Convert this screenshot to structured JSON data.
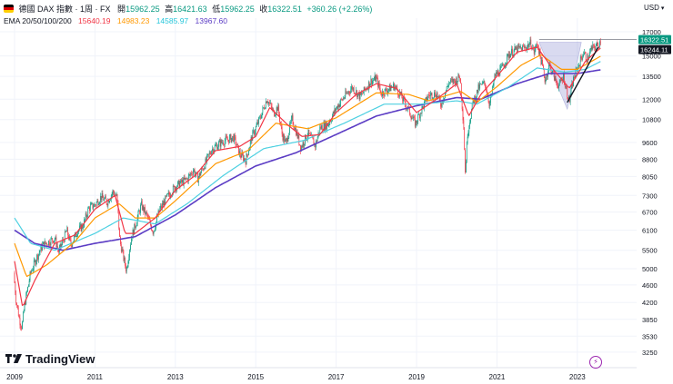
{
  "header": {
    "symbol": "德國 DAX 指數 · 1周 · FX",
    "open_label": "開",
    "open": "15962.25",
    "high_label": "高",
    "high": "16421.63",
    "low_label": "低",
    "low": "15962.25",
    "close_label": "收",
    "close": "16322.51",
    "change": "+360.26 (+2.26%)",
    "ema_label": "EMA 20/50/100/200",
    "ema20": "15640.19",
    "ema50": "14983.23",
    "ema100": "14585.97",
    "ema200": "13967.60"
  },
  "currency": "USD",
  "logo_text": "TradingView",
  "colors": {
    "up": "#089981",
    "down": "#f23645",
    "ema20": "#f23645",
    "ema50": "#ff9800",
    "ema100": "#4dd0e1",
    "ema200": "#5b3cc4",
    "flag_black": "#000000",
    "flag_red": "#dd0000",
    "flag_gold": "#ffce00"
  },
  "chart_data": {
    "type": "candlestick",
    "title": "德國 DAX 指數 · 1周 · FX",
    "scale": "log",
    "ylim": [
      3000,
      17400
    ],
    "xlim": [
      2009.0,
      2024.75
    ],
    "y_ticks": [
      17000,
      15000,
      13500,
      12000,
      10800,
      9600,
      8800,
      8050,
      7300,
      6700,
      6100,
      5500,
      5000,
      4600,
      4200,
      3850,
      3530,
      3250
    ],
    "x_ticks": [
      "2009",
      "2011",
      "2013",
      "2015",
      "2017",
      "2019",
      "2021",
      "2023"
    ],
    "x_tick_years": [
      2009,
      2011,
      2013,
      2015,
      2017,
      2019,
      2021,
      2023
    ],
    "price_labels": [
      {
        "value": 16322.51,
        "text": "16322.51",
        "color": "#089981"
      },
      {
        "value": 16244.11,
        "text": "16244.11",
        "color": "#131722"
      }
    ],
    "anchors": [
      [
        2009.0,
        4900,
        4400
      ],
      [
        2009.04,
        4400,
        4100
      ],
      [
        2009.12,
        4000,
        3700
      ],
      [
        2009.18,
        3800,
        3600
      ],
      [
        2009.25,
        4200,
        4100
      ],
      [
        2009.4,
        5000,
        4800
      ],
      [
        2009.55,
        5400,
        5200
      ],
      [
        2009.7,
        5700,
        5600
      ],
      [
        2009.85,
        5800,
        5700
      ],
      [
        2010.0,
        5900,
        5800
      ],
      [
        2010.1,
        5500,
        5400
      ],
      [
        2010.3,
        6200,
        6000
      ],
      [
        2010.4,
        5700,
        5600
      ],
      [
        2010.55,
        6100,
        6000
      ],
      [
        2010.7,
        6300,
        6200
      ],
      [
        2010.85,
        6900,
        6800
      ],
      [
        2011.0,
        7000,
        6900
      ],
      [
        2011.15,
        7300,
        7200
      ],
      [
        2011.3,
        7100,
        7000
      ],
      [
        2011.45,
        7500,
        7400
      ],
      [
        2011.55,
        7250,
        7200
      ],
      [
        2011.62,
        5900,
        5600
      ],
      [
        2011.72,
        5300,
        5200
      ],
      [
        2011.78,
        5000,
        4900
      ],
      [
        2011.9,
        5900,
        5800
      ],
      [
        2012.0,
        6300,
        6200
      ],
      [
        2012.15,
        7000,
        6900
      ],
      [
        2012.3,
        6600,
        6500
      ],
      [
        2012.45,
        6100,
        6000
      ],
      [
        2012.6,
        6800,
        6700
      ],
      [
        2012.8,
        7300,
        7200
      ],
      [
        2013.0,
        7700,
        7600
      ],
      [
        2013.3,
        8000,
        7900
      ],
      [
        2013.45,
        8400,
        8300
      ],
      [
        2013.55,
        8000,
        7900
      ],
      [
        2013.7,
        8500,
        8400
      ],
      [
        2013.9,
        9300,
        9200
      ],
      [
        2014.1,
        9600,
        9500
      ],
      [
        2014.3,
        9800,
        9700
      ],
      [
        2014.45,
        9900,
        9800
      ],
      [
        2014.6,
        9100,
        9000
      ],
      [
        2014.75,
        8800,
        8700
      ],
      [
        2014.9,
        9900,
        9800
      ],
      [
        2015.1,
        10900,
        10800
      ],
      [
        2015.28,
        12100,
        12000
      ],
      [
        2015.45,
        11200,
        11100
      ],
      [
        2015.55,
        11600,
        11500
      ],
      [
        2015.65,
        10100,
        10000
      ],
      [
        2015.75,
        9600,
        9500
      ],
      [
        2015.9,
        10900,
        10800
      ],
      [
        2016.05,
        9900,
        9800
      ],
      [
        2016.12,
        9400,
        9300
      ],
      [
        2016.3,
        10100,
        10000
      ],
      [
        2016.48,
        9500,
        9400
      ],
      [
        2016.6,
        10400,
        10300
      ],
      [
        2016.8,
        10600,
        10500
      ],
      [
        2017.0,
        11500,
        11400
      ],
      [
        2017.2,
        12200,
        12100
      ],
      [
        2017.4,
        12800,
        12700
      ],
      [
        2017.6,
        12200,
        12100
      ],
      [
        2017.85,
        13200,
        13100
      ],
      [
        2018.0,
        13400,
        13300
      ],
      [
        2018.12,
        12400,
        12300
      ],
      [
        2018.3,
        12700,
        12600
      ],
      [
        2018.45,
        12900,
        12800
      ],
      [
        2018.6,
        12300,
        12200
      ],
      [
        2018.8,
        11400,
        11300
      ],
      [
        2018.97,
        10600,
        10500
      ],
      [
        2019.1,
        11300,
        11200
      ],
      [
        2019.3,
        12300,
        12200
      ],
      [
        2019.5,
        12400,
        12300
      ],
      [
        2019.6,
        11700,
        11600
      ],
      [
        2019.8,
        13100,
        13000
      ],
      [
        2020.0,
        13300,
        13200
      ],
      [
        2020.08,
        13600,
        13500
      ],
      [
        2020.18,
        10300,
        10100
      ],
      [
        2020.21,
        8300,
        8100
      ],
      [
        2020.27,
        10200,
        10000
      ],
      [
        2020.4,
        11800,
        11700
      ],
      [
        2020.55,
        12800,
        12700
      ],
      [
        2020.7,
        13100,
        13000
      ],
      [
        2020.82,
        11700,
        11600
      ],
      [
        2020.95,
        13600,
        13500
      ],
      [
        2021.1,
        14000,
        13900
      ],
      [
        2021.3,
        15200,
        15100
      ],
      [
        2021.5,
        15600,
        15500
      ],
      [
        2021.7,
        15700,
        15600
      ],
      [
        2021.85,
        16100,
        16000
      ],
      [
        2021.92,
        15300,
        15200
      ],
      [
        2022.0,
        16100,
        16000
      ],
      [
        2022.15,
        14000,
        13900
      ],
      [
        2022.2,
        13400,
        13000
      ],
      [
        2022.3,
        14400,
        14300
      ],
      [
        2022.45,
        13300,
        13200
      ],
      [
        2022.55,
        12900,
        12800
      ],
      [
        2022.65,
        13600,
        13500
      ],
      [
        2022.75,
        12400,
        12300
      ],
      [
        2022.8,
        11900,
        11800
      ],
      [
        2022.9,
        13300,
        13200
      ],
      [
        2023.0,
        14100,
        14000
      ],
      [
        2023.15,
        15300,
        15200
      ],
      [
        2023.25,
        14800,
        14700
      ],
      [
        2023.35,
        15600,
        15500
      ],
      [
        2023.5,
        15900,
        15800
      ],
      [
        2023.58,
        16300,
        16200
      ]
    ],
    "ema_anchors": {
      "ema20": [
        [
          2009.0,
          5200
        ],
        [
          2009.2,
          4100
        ],
        [
          2009.5,
          4700
        ],
        [
          2010.0,
          5700
        ],
        [
          2010.5,
          5950
        ],
        [
          2011.0,
          6800
        ],
        [
          2011.5,
          7300
        ],
        [
          2011.75,
          6000
        ],
        [
          2012.0,
          6000
        ],
        [
          2012.5,
          6500
        ],
        [
          2013.0,
          7500
        ],
        [
          2013.5,
          8100
        ],
        [
          2014.0,
          9200
        ],
        [
          2014.6,
          9400
        ],
        [
          2015.0,
          9900
        ],
        [
          2015.35,
          11500
        ],
        [
          2015.8,
          10500
        ],
        [
          2016.15,
          9900
        ],
        [
          2016.6,
          10000
        ],
        [
          2017.0,
          11200
        ],
        [
          2017.5,
          12300
        ],
        [
          2018.0,
          13000
        ],
        [
          2018.5,
          12700
        ],
        [
          2019.0,
          11200
        ],
        [
          2019.5,
          12000
        ],
        [
          2020.0,
          13000
        ],
        [
          2020.3,
          11000
        ],
        [
          2020.6,
          12300
        ],
        [
          2021.0,
          13500
        ],
        [
          2021.5,
          15300
        ],
        [
          2022.0,
          15700
        ],
        [
          2022.4,
          14000
        ],
        [
          2022.8,
          12700
        ],
        [
          2023.2,
          14600
        ],
        [
          2023.58,
          15640
        ]
      ],
      "ema50": [
        [
          2009.0,
          5700
        ],
        [
          2009.3,
          4800
        ],
        [
          2009.8,
          5100
        ],
        [
          2010.5,
          5750
        ],
        [
          2011.0,
          6500
        ],
        [
          2011.6,
          7000
        ],
        [
          2012.0,
          6500
        ],
        [
          2012.5,
          6500
        ],
        [
          2013.0,
          7100
        ],
        [
          2014.0,
          8600
        ],
        [
          2014.8,
          9200
        ],
        [
          2015.5,
          10600
        ],
        [
          2016.3,
          10300
        ],
        [
          2017.0,
          10900
        ],
        [
          2018.0,
          12400
        ],
        [
          2018.8,
          12300
        ],
        [
          2019.3,
          11900
        ],
        [
          2020.1,
          12500
        ],
        [
          2020.5,
          11800
        ],
        [
          2021.0,
          12800
        ],
        [
          2021.6,
          14300
        ],
        [
          2022.1,
          15100
        ],
        [
          2022.6,
          14000
        ],
        [
          2023.0,
          14000
        ],
        [
          2023.58,
          14983
        ]
      ],
      "ema100": [
        [
          2009.0,
          6500
        ],
        [
          2009.4,
          5700
        ],
        [
          2010.0,
          5500
        ],
        [
          2011.0,
          6000
        ],
        [
          2011.7,
          6500
        ],
        [
          2012.5,
          6300
        ],
        [
          2013.3,
          7000
        ],
        [
          2014.2,
          8100
        ],
        [
          2015.2,
          9300
        ],
        [
          2016.2,
          9700
        ],
        [
          2017.2,
          10600
        ],
        [
          2018.2,
          11700
        ],
        [
          2019.1,
          11700
        ],
        [
          2020.0,
          11900
        ],
        [
          2020.5,
          11700
        ],
        [
          2021.3,
          12800
        ],
        [
          2022.0,
          14100
        ],
        [
          2022.7,
          13800
        ],
        [
          2023.2,
          14000
        ],
        [
          2023.58,
          14586
        ]
      ],
      "ema200": [
        [
          2009.0,
          6100
        ],
        [
          2009.5,
          5700
        ],
        [
          2010.2,
          5500
        ],
        [
          2011.0,
          5700
        ],
        [
          2012.0,
          5900
        ],
        [
          2013.0,
          6600
        ],
        [
          2014.0,
          7600
        ],
        [
          2015.0,
          8500
        ],
        [
          2016.0,
          9100
        ],
        [
          2017.0,
          10000
        ],
        [
          2018.0,
          11000
        ],
        [
          2019.0,
          11600
        ],
        [
          2020.0,
          12100
        ],
        [
          2020.6,
          12000
        ],
        [
          2021.5,
          13000
        ],
        [
          2022.3,
          13700
        ],
        [
          2023.0,
          13700
        ],
        [
          2023.58,
          13968
        ]
      ]
    },
    "drawings": {
      "triangle": [
        [
          2022.05,
          16100
        ],
        [
          2022.75,
          11400
        ],
        [
          2023.1,
          16100
        ]
      ],
      "trend_line": [
        [
          2022.75,
          11800
        ],
        [
          2023.52,
          15700
        ]
      ],
      "horizontal_level": 16322.51
    }
  }
}
